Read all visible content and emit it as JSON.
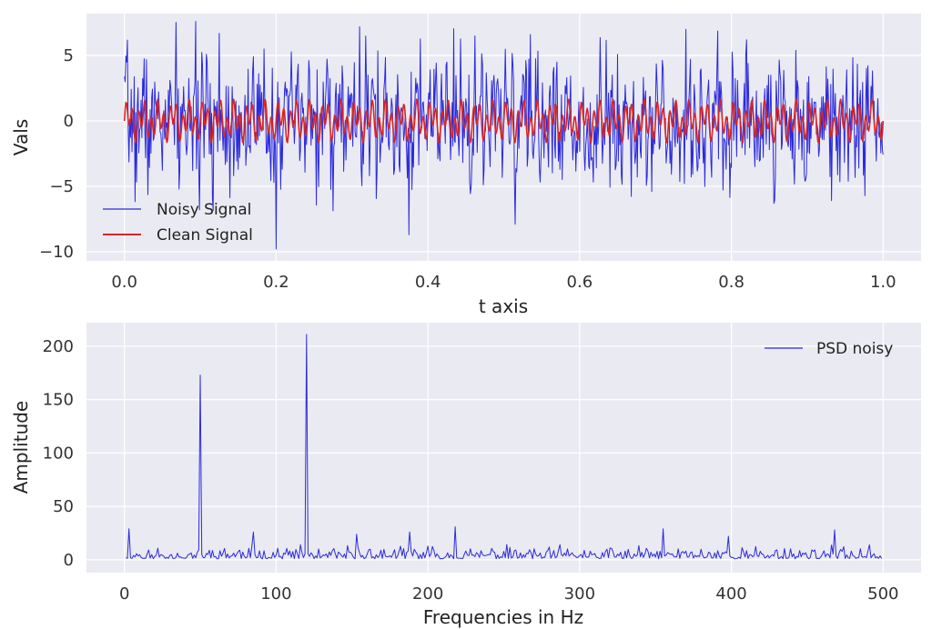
{
  "chart_data": [
    {
      "type": "line",
      "xlabel": "t axis",
      "ylabel": "Vals",
      "xlim": [
        -0.05,
        1.05
      ],
      "ylim": [
        -10.7,
        8.2
      ],
      "xticks": [
        0.0,
        0.2,
        0.4,
        0.6,
        0.8,
        1.0
      ],
      "xtick_labels": [
        "0.0",
        "0.2",
        "0.4",
        "0.6",
        "0.8",
        "1.0"
      ],
      "yticks": [
        5,
        0,
        -5,
        -10
      ],
      "ytick_labels": [
        "5",
        "0",
        "−5",
        "−10"
      ],
      "grid": true,
      "legend_position": "lower-left",
      "series": [
        {
          "name": "Noisy Signal",
          "color": "#2b2bdc",
          "style": "noise",
          "amplitude": 3.0,
          "samples": 1001,
          "seed": 7,
          "extremes": [
            [
              0.116,
              -5.9
            ],
            [
              0.125,
              6.7
            ],
            [
              0.2,
              -9.8
            ],
            [
              0.31,
              7.2
            ],
            [
              0.375,
              -8.7
            ],
            [
              0.515,
              -7.9
            ],
            [
              0.535,
              6.6
            ],
            [
              0.74,
              7.0
            ],
            [
              0.82,
              6.2
            ]
          ]
        },
        {
          "name": "Clean Signal",
          "color": "#d62728",
          "style": "sum",
          "components": [
            {
              "amp": 0.7,
              "freq": 50
            },
            {
              "amp": 1.0,
              "freq": 120
            }
          ],
          "samples": 1001
        }
      ]
    },
    {
      "type": "line",
      "xlabel": "Frequencies in Hz",
      "ylabel": "Amplitude",
      "xlim": [
        -25,
        525
      ],
      "ylim": [
        -12,
        222
      ],
      "xticks": [
        0,
        100,
        200,
        300,
        400,
        500
      ],
      "xtick_labels": [
        "0",
        "100",
        "200",
        "300",
        "400",
        "500"
      ],
      "yticks": [
        200,
        150,
        100,
        50,
        0
      ],
      "ytick_labels": [
        "200",
        "150",
        "100",
        "50",
        "0"
      ],
      "grid": true,
      "legend_position": "top-right",
      "series": [
        {
          "name": "PSD noisy",
          "color": "#2b2bdc",
          "x_range": [
            1,
            499
          ],
          "baseline_max": 14,
          "seed": 11,
          "peaks": [
            [
              3,
              29
            ],
            [
              50,
              173
            ],
            [
              120,
              211
            ],
            [
              85,
              26
            ],
            [
              153,
              24
            ],
            [
              188,
              26
            ],
            [
              218,
              31
            ],
            [
              355,
              29
            ],
            [
              468,
              28
            ],
            [
              398,
              22
            ]
          ]
        }
      ]
    }
  ]
}
